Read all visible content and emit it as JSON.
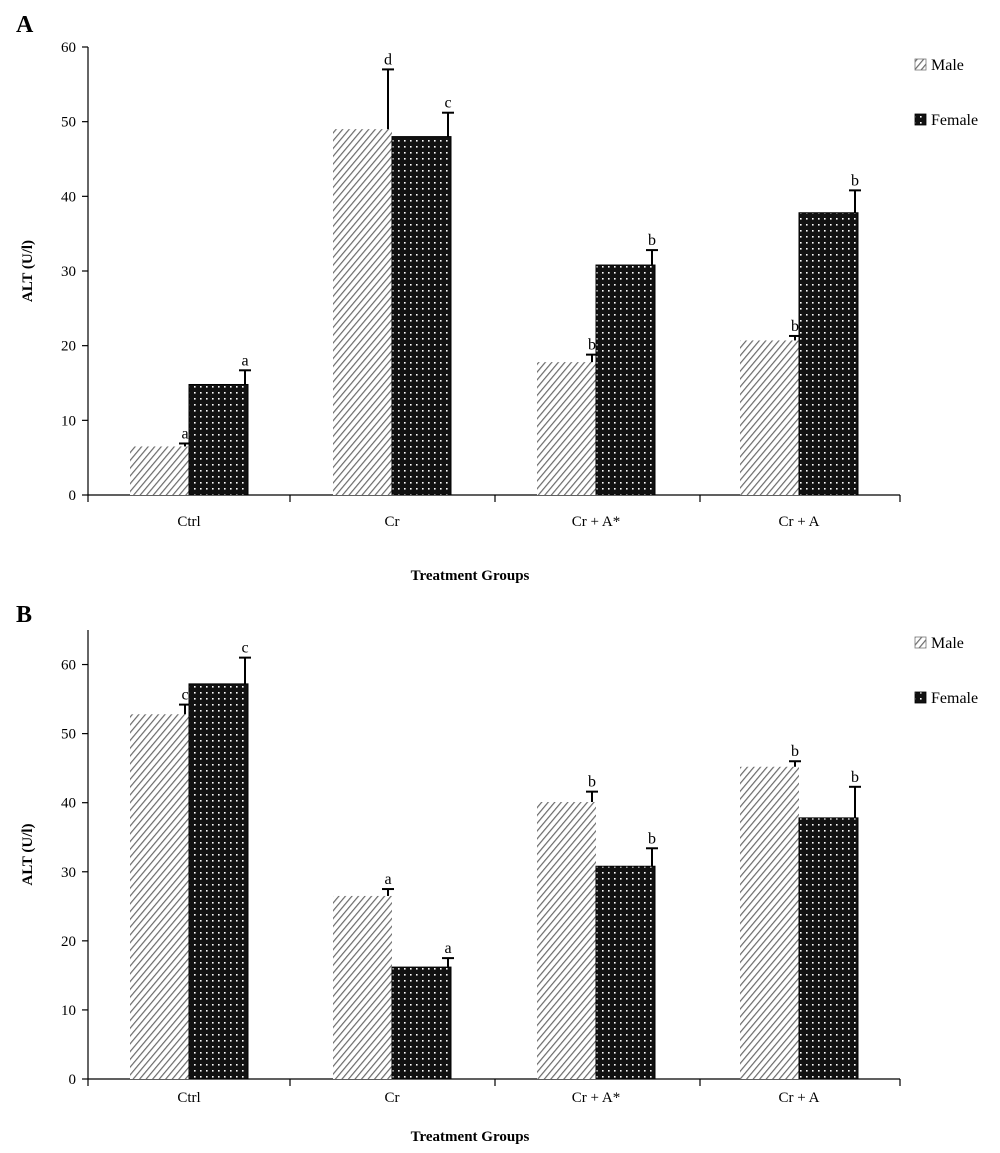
{
  "colors": {
    "male": "#9e9e9e",
    "female": "#111111",
    "axis": "#000000"
  },
  "legend_entries": [
    "Male",
    "Female"
  ],
  "chart_data": [
    {
      "panel": "A",
      "type": "bar",
      "categories": [
        "Ctrl",
        "Cr",
        "Cr + A*",
        "Cr + A"
      ],
      "series": [
        {
          "name": "Male",
          "values": [
            6.5,
            49,
            17.8,
            20.7
          ],
          "errors": [
            0.4,
            8,
            1,
            0.6
          ],
          "labels": [
            "a",
            "d",
            "b",
            "b"
          ]
        },
        {
          "name": "Female",
          "values": [
            14.8,
            48,
            30.8,
            37.8
          ],
          "errors": [
            1.9,
            3.2,
            2,
            3
          ],
          "labels": [
            "a",
            "c",
            "b",
            "b"
          ]
        }
      ],
      "xlabel": "Treatment Groups",
      "ylabel": "ALT (U/l)",
      "ylim": [
        0,
        60
      ],
      "yticks": [
        0,
        10,
        20,
        30,
        40,
        50,
        60
      ],
      "grid": false,
      "legend": "top-right"
    },
    {
      "panel": "B",
      "type": "bar",
      "categories": [
        "Ctrl",
        "Cr",
        "Cr + A*",
        "Cr + A"
      ],
      "series": [
        {
          "name": "Male",
          "values": [
            52.8,
            26.5,
            40.1,
            45.2
          ],
          "errors": [
            1.4,
            1,
            1.5,
            0.8
          ],
          "labels": [
            "c",
            "a",
            "b",
            "b"
          ]
        },
        {
          "name": "Female",
          "values": [
            57.2,
            16.2,
            30.8,
            37.8
          ],
          "errors": [
            3.8,
            1.3,
            2.6,
            4.5
          ],
          "labels": [
            "c",
            "a",
            "b",
            "b"
          ]
        }
      ],
      "xlabel": "Treatment Groups",
      "ylabel": "ALT (U/l)",
      "ylim": [
        0,
        65
      ],
      "yticks": [
        0,
        10,
        20,
        30,
        40,
        50,
        60
      ],
      "grid": false,
      "legend": "top-right"
    }
  ]
}
